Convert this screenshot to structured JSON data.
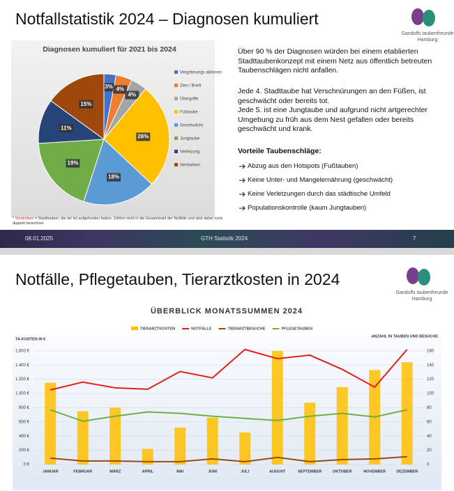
{
  "slides": [
    {
      "title": "Notfallstatistik 2024 – Diagnosen kumuliert",
      "logo": "Gandolfs taubenfreunde Hamburg",
      "paragraphs": [
        "Über 90 % der Diagnosen würden bei einem etablierten Stadttaubenkonzept mit einem Netz aus öffentlich betreuten Taubenschlägen nicht anfallen.",
        "Jede 4. Stadttaube hat Verschnürungen an den Füßen, ist geschwächt oder bereits tot.",
        "Jede 5. ist eine Jungtaube und aufgrund nicht artgerechter Umgebung zu früh aus dem Nest gefallen oder bereits geschwächt und krank."
      ],
      "benefits_title": "Vorteile Taubenschläge:",
      "benefits": [
        "Abzug aus den Hotspots (Fußtauben)",
        "Keine Unter- und Mangelernährung (geschwächt)",
        "Keine Verletzungen durch das städtische Umfeld",
        "Populationskontrolle (kaum Jungtauben)"
      ],
      "footnote_marker": "* Verstorben",
      "footnote": "= Stadttauben, die wir tot aufgefunden haben. Zählen nicht in die Gesamtzahl der Notfälle und sind daher nicht doppelt berechnet.",
      "footer": {
        "date": "08.01.2025",
        "center": "GTH Statistik 2024",
        "page": "7"
      }
    },
    {
      "title": "Notfälle, Pflegetauben, Tierarztkosten in 2024",
      "logo": "Gandolfs taubenfreunde Hamburg"
    }
  ],
  "chart_data": [
    {
      "type": "pie",
      "title": "Diagnosen kumuliert für 2021 bis 2024",
      "categories": [
        "Vergrämungs aktionen",
        "Zien / Briefi",
        "Übergriffe",
        "Fußtaube",
        "Geschwächt",
        "Jungtaube",
        "Verletzung",
        "Verstorben"
      ],
      "values": [
        3,
        4,
        4,
        26,
        18,
        19,
        11,
        15
      ],
      "value_labels": [
        "3%",
        "4%",
        "4%",
        "26%",
        "18%",
        "19%",
        "11%",
        "15%"
      ],
      "colors": [
        "#4472c4",
        "#ed7d31",
        "#a5a5a5",
        "#ffc000",
        "#5b9bd5",
        "#70ad47",
        "#264478",
        "#9e480e"
      ],
      "legend": "right"
    },
    {
      "type": "combo",
      "title": "ÜBERBLICK MONATSSUMMEN 2024",
      "categories": [
        "JANUAR",
        "FEBRUAR",
        "MÄRZ",
        "APRIL",
        "MAI",
        "JUNI",
        "JULI",
        "AUGUST",
        "SEPTEMBER",
        "OKTOBER",
        "NOVEMBER",
        "DEZEMBER"
      ],
      "ylabel": "TA-KOSTEN IN €",
      "y2label": "ANZAHL IN TAUBEN UND BESUCHE",
      "ylim": [
        0,
        1700
      ],
      "yticks": [
        {
          "value": 0,
          "label": "0 €"
        },
        {
          "value": 200,
          "label": "200 €"
        },
        {
          "value": 400,
          "label": "400 €"
        },
        {
          "value": 600,
          "label": "600 €"
        },
        {
          "value": 800,
          "label": "800 €"
        },
        {
          "value": 1000,
          "label": "1.000 €"
        },
        {
          "value": 1200,
          "label": "1.200 €"
        },
        {
          "value": 1400,
          "label": "1.400 €"
        },
        {
          "value": 1600,
          "label": "1.600 €"
        }
      ],
      "y2lim": [
        0,
        170
      ],
      "y2ticks": [
        0,
        20,
        40,
        60,
        80,
        100,
        120,
        140,
        160
      ],
      "grid": true,
      "legend": "top",
      "series": [
        {
          "name": "TIERARZTKOSTEN",
          "kind": "bar",
          "color": "#ffc000",
          "values": [
            1150,
            750,
            800,
            220,
            520,
            660,
            450,
            1600,
            870,
            1090,
            1330,
            1440
          ]
        },
        {
          "name": "NOTFÄLLE",
          "kind": "line",
          "axis": "y2",
          "color": "#e0201b",
          "values": [
            105,
            116,
            108,
            106,
            131,
            122,
            162,
            149,
            154,
            134,
            109,
            162
          ]
        },
        {
          "name": "TIERARZTBESUCHE",
          "kind": "line",
          "axis": "y2",
          "color": "#9e480e",
          "values": [
            9,
            5,
            5,
            4,
            4,
            8,
            4,
            10,
            4,
            7,
            8,
            11
          ]
        },
        {
          "name": "PFLEGETAUBEN",
          "kind": "line",
          "axis": "y2",
          "color": "#70ad47",
          "values": [
            77,
            61,
            68,
            74,
            72,
            68,
            65,
            62,
            68,
            72,
            67,
            77
          ]
        }
      ]
    }
  ]
}
